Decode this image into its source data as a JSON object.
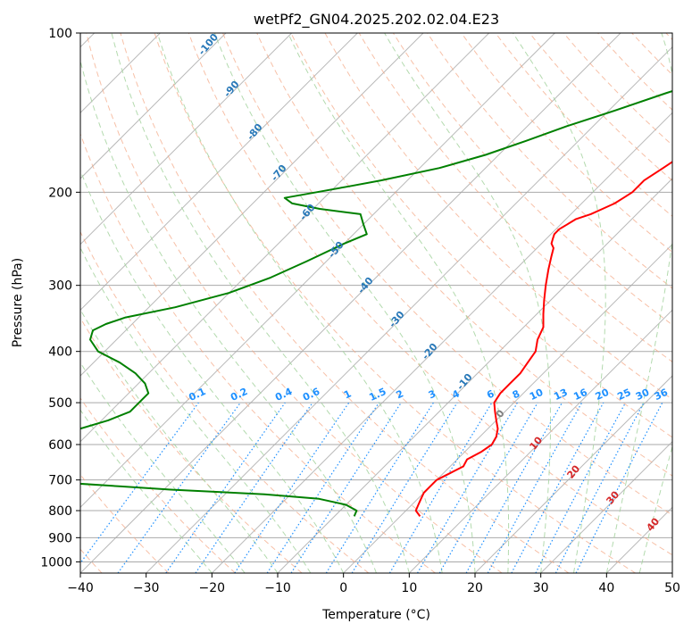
{
  "chart_data": {
    "type": "line",
    "title": "wetPf2_GN04.2025.202.02.04.E23",
    "xlabel": "Temperature (°C)",
    "ylabel": "Pressure (hPa)",
    "xlim": [
      -40,
      50
    ],
    "ylim": [
      1050,
      100
    ],
    "y_scale": "log",
    "skew_deg": 45,
    "grid": true,
    "xticks": [
      "−40",
      "−30",
      "−20",
      "−10",
      "0",
      "10",
      "20",
      "30",
      "40",
      "50"
    ],
    "xtick_values": [
      -40,
      -30,
      -20,
      -10,
      0,
      10,
      20,
      30,
      40,
      50
    ],
    "yticks": [
      "100",
      "200",
      "300",
      "400",
      "500",
      "600",
      "700",
      "800",
      "900",
      "1000"
    ],
    "ytick_values": [
      100,
      200,
      300,
      400,
      500,
      600,
      700,
      800,
      900,
      1000
    ],
    "series": [
      {
        "color": "#ff0000",
        "p": [
          820,
          800,
          780,
          760,
          740,
          720,
          700,
          680,
          660,
          640,
          620,
          600,
          580,
          560,
          540,
          520,
          500,
          480,
          460,
          440,
          420,
          400,
          380,
          360,
          340,
          320,
          300,
          280,
          265,
          255,
          250,
          245,
          240,
          235,
          230,
          225,
          220,
          215,
          210,
          205,
          200,
          190,
          180,
          170,
          165,
          160,
          150,
          140,
          130,
          120,
          110,
          100
        ],
        "t": [
          3,
          1.5,
          1,
          0.5,
          0,
          0,
          0,
          1,
          2,
          1.5,
          2.5,
          3,
          2.5,
          1.5,
          0,
          -1.5,
          -3,
          -3.5,
          -3.5,
          -3.5,
          -4,
          -4.5,
          -6,
          -7,
          -9,
          -11,
          -13,
          -15,
          -16.5,
          -17.5,
          -18.5,
          -19,
          -19.5,
          -19.5,
          -19,
          -18.5,
          -17,
          -16,
          -15,
          -14.5,
          -14,
          -14,
          -13,
          -12,
          -11,
          -10,
          -8,
          -6,
          -4,
          -2,
          -1,
          0
        ]
      },
      {
        "color": "#008000",
        "p": [
          820,
          800,
          780,
          760,
          745,
          730,
          720,
          710,
          700,
          680,
          650,
          620,
          600,
          580,
          560,
          540,
          520,
          500,
          480,
          460,
          440,
          420,
          400,
          380,
          365,
          355,
          345,
          330,
          310,
          290,
          270,
          250,
          240,
          230,
          220,
          215,
          210,
          205,
          200,
          195,
          190,
          180,
          170,
          160,
          150,
          140,
          130,
          120,
          110,
          100
        ],
        "t": [
          -7,
          -7.5,
          -10,
          -15,
          -24,
          -39,
          -47,
          -55,
          -64,
          -68,
          -70,
          -70,
          -68,
          -65,
          -62,
          -59,
          -57,
          -57,
          -57,
          -59,
          -62,
          -66,
          -71,
          -74,
          -75,
          -74,
          -72,
          -66,
          -60,
          -56,
          -53,
          -50,
          -48,
          -50,
          -52,
          -59,
          -64,
          -66,
          -62,
          -58,
          -54,
          -47,
          -42,
          -38,
          -34,
          -29,
          -24,
          -18,
          -12,
          -6
        ]
      }
    ],
    "mixing_ratio_labels": [
      "0.1",
      "0.2",
      "0.4",
      "0.6",
      "1",
      "1.5",
      "2",
      "3",
      "4",
      "6",
      "8",
      "10",
      "13",
      "16",
      "20",
      "25",
      "30",
      "36"
    ],
    "mixing_ratio_values": [
      0.1,
      0.2,
      0.4,
      0.6,
      1,
      1.5,
      2,
      3,
      4,
      6,
      8,
      10,
      13,
      16,
      20,
      25,
      30,
      36
    ],
    "dry_adiabat_labels": [
      "-100",
      "-90",
      "-80",
      "-70",
      "-60",
      "-50",
      "-40",
      "-30",
      "-20",
      "-10"
    ],
    "dry_adiabat_values": [
      -100,
      -90,
      -80,
      -70,
      -60,
      -50,
      -40,
      -30,
      -20,
      -10
    ],
    "moist_adiabat_labels": [
      "0",
      "10",
      "20",
      "30",
      "40"
    ],
    "moist_adiabat_values": [
      0,
      10,
      20,
      30,
      40
    ],
    "colors": {
      "isotherm": "#808080",
      "isobar": "#a9a9a9",
      "dry_adiabat": "#f4a582",
      "moist_adiabat": "#a6d4a0",
      "mixing_ratio": "#1e90ff",
      "dry_label": "#2878b8",
      "moist_label": "#d62728",
      "zero_label": "#808080",
      "saturation": "#d8c4a4"
    }
  }
}
